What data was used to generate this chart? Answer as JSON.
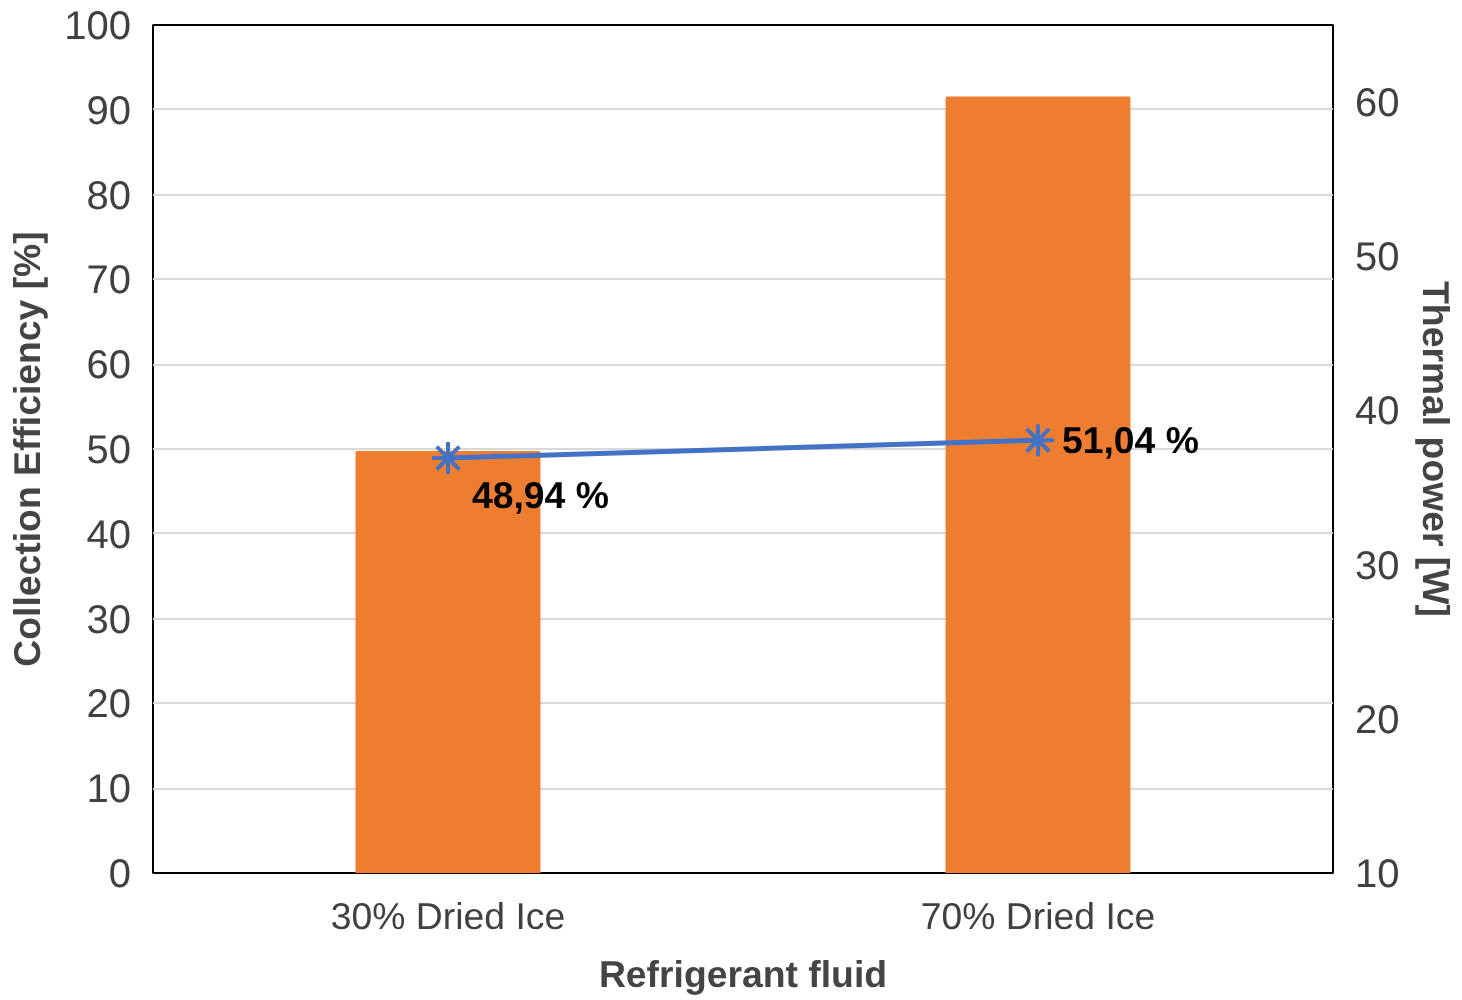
{
  "chart_data": {
    "type": "bar",
    "xlabel": "Refrigerant fluid",
    "ylabel": "Collection Efficiency [%]",
    "y2label": "Thermal power [W]",
    "categories": [
      "30% Dried Ice",
      "70% Dried Ice"
    ],
    "ylim": [
      0,
      100
    ],
    "yticks": [
      0,
      10,
      20,
      30,
      40,
      50,
      60,
      70,
      80,
      90,
      100
    ],
    "y2lim": [
      10,
      65
    ],
    "y2ticks": [
      10,
      20,
      30,
      40,
      50,
      60
    ],
    "grid": "y",
    "marker": "cross",
    "series": [
      {
        "axis": "y2",
        "color": "#ed7d31",
        "values": [
          37.3,
          60.3
        ]
      },
      {
        "type": "line",
        "axis": "y",
        "color": "#4472c4",
        "values": [
          48.94,
          51.04
        ],
        "value_labels": [
          "48,94 %",
          "51,04 %"
        ]
      }
    ]
  }
}
